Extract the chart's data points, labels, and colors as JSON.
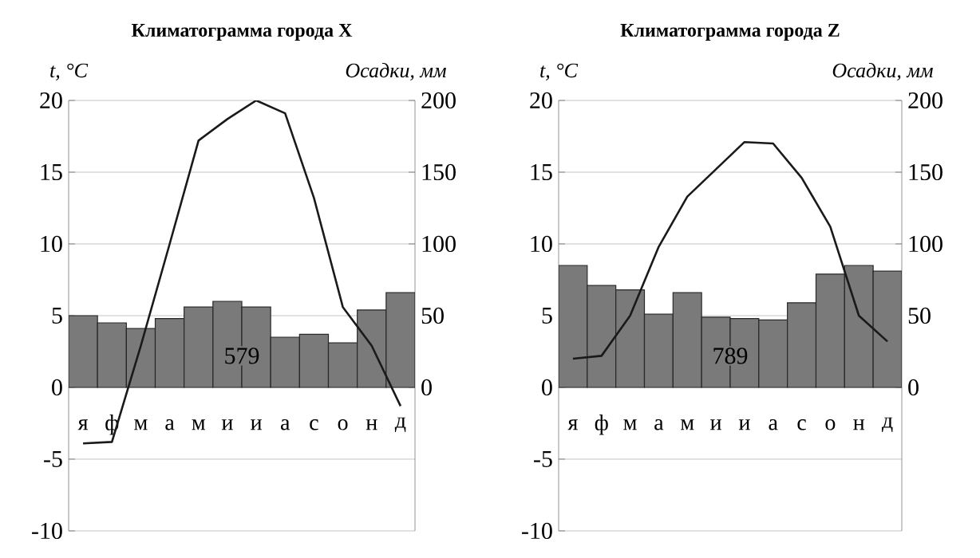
{
  "chart_data": [
    {
      "type": "bar",
      "title": "Климатограмма города X",
      "ylabel": "t, °C",
      "y2label": "Осадки, мм",
      "categories": [
        "я",
        "ф",
        "м",
        "а",
        "м",
        "и",
        "и",
        "а",
        "с",
        "о",
        "н",
        "д"
      ],
      "ylim": [
        -10,
        20
      ],
      "yticks": [
        -10,
        -5,
        0,
        5,
        10,
        15,
        20
      ],
      "y2lim": [
        -100,
        200
      ],
      "y2ticks": [
        0,
        50,
        100,
        150,
        200
      ],
      "grid": true,
      "annotations": [
        "579"
      ],
      "series": [
        {
          "type": "bar",
          "axis": "y2",
          "color": "#7a7a7a",
          "values": [
            50,
            45,
            41,
            48,
            56,
            60,
            56,
            35,
            37,
            31,
            54,
            66
          ]
        },
        {
          "type": "line",
          "color": "#1a1a1a",
          "values": [
            -3.9,
            -3.8,
            2.9,
            10,
            17.2,
            18.7,
            20,
            19.1,
            13.2,
            5.6,
            2.9,
            -1.3
          ]
        }
      ]
    },
    {
      "type": "bar",
      "title": "Климатограмма города Z",
      "ylabel": "t, °C",
      "y2label": "Осадки, мм",
      "categories": [
        "я",
        "ф",
        "м",
        "а",
        "м",
        "и",
        "и",
        "а",
        "с",
        "о",
        "н",
        "д"
      ],
      "ylim": [
        -10,
        20
      ],
      "yticks": [
        -10,
        -5,
        0,
        5,
        10,
        15,
        20
      ],
      "y2lim": [
        -100,
        200
      ],
      "y2ticks": [
        0,
        50,
        100,
        150,
        200
      ],
      "grid": true,
      "annotations": [
        "789"
      ],
      "series": [
        {
          "type": "bar",
          "axis": "y2",
          "color": "#7a7a7a",
          "values": [
            85,
            71,
            68,
            51,
            66,
            49,
            48,
            47,
            59,
            79,
            85,
            81
          ]
        },
        {
          "type": "line",
          "color": "#1a1a1a",
          "values": [
            2.0,
            2.2,
            5.0,
            9.8,
            13.3,
            15.2,
            17.1,
            17.0,
            14.6,
            11.2,
            5.0,
            3.2
          ]
        }
      ]
    }
  ]
}
